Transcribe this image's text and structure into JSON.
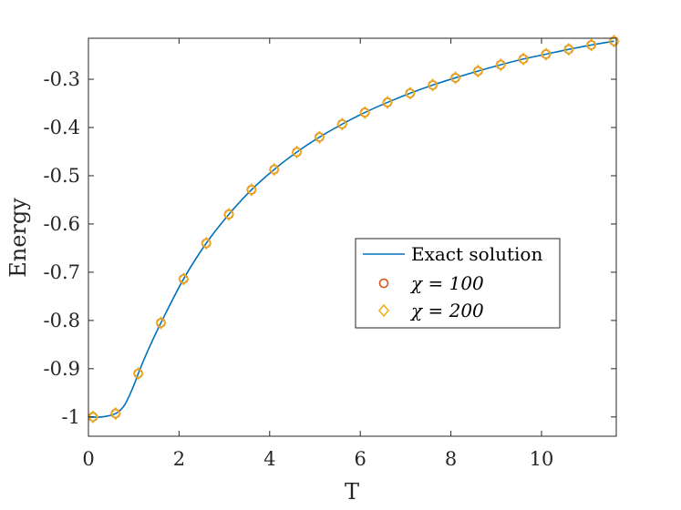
{
  "chart_data": {
    "type": "line",
    "xlabel": "T",
    "ylabel": "Energy",
    "xlim": [
      0,
      11.65
    ],
    "ylim": [
      -1.04,
      -0.215
    ],
    "xticks": [
      {
        "value": 0,
        "label": "0"
      },
      {
        "value": 2,
        "label": "2"
      },
      {
        "value": 4,
        "label": "4"
      },
      {
        "value": 6,
        "label": "6"
      },
      {
        "value": 8,
        "label": "8"
      },
      {
        "value": 10,
        "label": "10"
      }
    ],
    "yticks": [
      {
        "value": -1.0,
        "label": "-1"
      },
      {
        "value": -0.9,
        "label": "-0.9"
      },
      {
        "value": -0.8,
        "label": "-0.8"
      },
      {
        "value": -0.7,
        "label": "-0.7"
      },
      {
        "value": -0.6,
        "label": "-0.6"
      },
      {
        "value": -0.5,
        "label": "-0.5"
      },
      {
        "value": -0.4,
        "label": "-0.4"
      },
      {
        "value": -0.3,
        "label": "-0.3"
      }
    ],
    "grid": false,
    "legend_position": "center-right",
    "series": [
      {
        "name": "Exact solution",
        "style": "line",
        "color": "#0072bd",
        "x": [
          0,
          0.3,
          0.6,
          0.8,
          1.0,
          1.1,
          1.3,
          1.6,
          2.1,
          2.6,
          3.1,
          3.6,
          4.1,
          4.6,
          5.1,
          5.6,
          6.1,
          6.6,
          7.1,
          7.6,
          8.1,
          8.6,
          9.1,
          9.6,
          10.1,
          10.6,
          11.1,
          11.6
        ],
        "y": [
          -1.0,
          -1.0,
          -0.993,
          -0.975,
          -0.935,
          -0.91,
          -0.865,
          -0.805,
          -0.714,
          -0.64,
          -0.58,
          -0.529,
          -0.487,
          -0.451,
          -0.42,
          -0.393,
          -0.369,
          -0.348,
          -0.329,
          -0.312,
          -0.297,
          -0.283,
          -0.27,
          -0.258,
          -0.248,
          -0.238,
          -0.229,
          -0.221
        ]
      },
      {
        "name": "χ = 100",
        "style": "marker-circle",
        "color": "#d95319",
        "x": [
          0.1,
          0.6,
          1.1,
          1.6,
          2.1,
          2.6,
          3.1,
          3.6,
          4.1,
          4.6,
          5.1,
          5.6,
          6.1,
          6.6,
          7.1,
          7.6,
          8.1,
          8.6,
          9.1,
          9.6,
          10.1,
          10.6,
          11.1,
          11.6
        ],
        "y": [
          -1.0,
          -0.993,
          -0.91,
          -0.805,
          -0.714,
          -0.64,
          -0.58,
          -0.529,
          -0.487,
          -0.451,
          -0.42,
          -0.393,
          -0.369,
          -0.348,
          -0.329,
          -0.312,
          -0.297,
          -0.283,
          -0.27,
          -0.258,
          -0.248,
          -0.238,
          -0.229,
          -0.221
        ]
      },
      {
        "name": "χ = 200",
        "style": "marker-diamond",
        "color": "#edb120",
        "x": [
          0.1,
          0.6,
          1.1,
          1.6,
          2.1,
          2.6,
          3.1,
          3.6,
          4.1,
          4.6,
          5.1,
          5.6,
          6.1,
          6.6,
          7.1,
          7.6,
          8.1,
          8.6,
          9.1,
          9.6,
          10.1,
          10.6,
          11.1,
          11.6
        ],
        "y": [
          -1.0,
          -0.993,
          -0.91,
          -0.805,
          -0.714,
          -0.64,
          -0.58,
          -0.529,
          -0.487,
          -0.451,
          -0.42,
          -0.393,
          -0.369,
          -0.348,
          -0.329,
          -0.312,
          -0.297,
          -0.283,
          -0.27,
          -0.258,
          -0.248,
          -0.238,
          -0.229,
          -0.221
        ]
      }
    ]
  }
}
